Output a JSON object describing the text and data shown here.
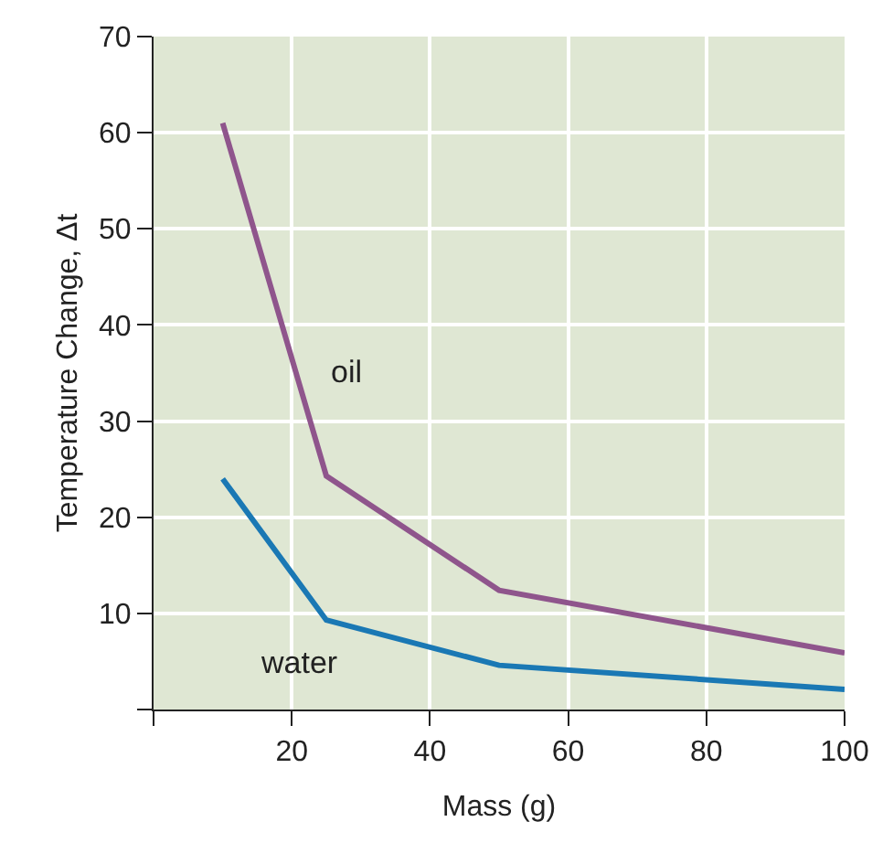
{
  "chart_data": {
    "type": "line",
    "xlabel": "Mass (g)",
    "ylabel": "Temperature Change, Δt",
    "xlim": [
      0,
      100
    ],
    "xticks": [
      {
        "value": 0,
        "label": null
      },
      20,
      40,
      60,
      80,
      100
    ],
    "ylim": [
      0,
      70
    ],
    "yticks": [
      {
        "value": 0,
        "label": null
      },
      10,
      20,
      30,
      40,
      50,
      60,
      70
    ],
    "grid": true,
    "legend": false,
    "marker": "none",
    "line_style": "solid",
    "x": [
      10,
      25,
      50,
      100
    ],
    "series": [
      {
        "name": "oil",
        "color": "#8f558c",
        "values": [
          61,
          24.3,
          12.4,
          5.9
        ]
      },
      {
        "name": "water",
        "color": "#1a78b4",
        "values": [
          24,
          9.3,
          4.6,
          2.1
        ]
      }
    ]
  }
}
